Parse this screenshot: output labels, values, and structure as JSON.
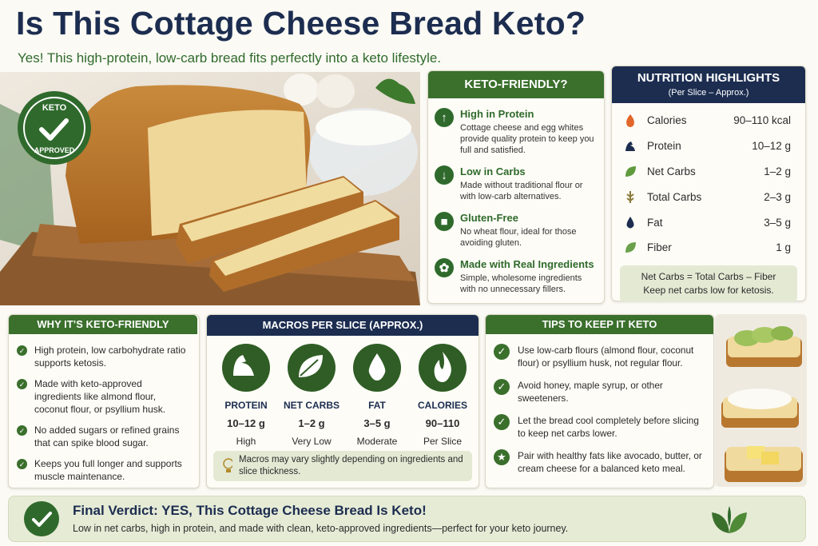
{
  "header": {
    "title": "Is This Cottage Cheese Bread Keto?",
    "subtitle": "Yes! This high-protein, low-carb bread fits perfectly into a keto lifestyle."
  },
  "badge": {
    "top": "KETO",
    "bottom": "APPROVED"
  },
  "keto_friendly": {
    "title": "KETO-FRIENDLY?",
    "items": [
      {
        "title": "High in Protein",
        "text": "Cottage cheese and egg whites provide quality protein to keep you full and satisfied."
      },
      {
        "title": "Low in Carbs",
        "text": "Made without traditional flour or with low-carb alternatives."
      },
      {
        "title": "Gluten-Free",
        "text": "No wheat flour, ideal for those avoiding gluten."
      },
      {
        "title": "Made with Real Ingredients",
        "text": "Simple, wholesome ingredients with no unnecessary fillers."
      }
    ]
  },
  "nutrition": {
    "title": "NUTRITION HIGHLIGHTS",
    "subtitle": "(Per Slice – Approx.)",
    "rows": [
      {
        "label": "Calories",
        "value": "90–110 kcal"
      },
      {
        "label": "Protein",
        "value": "10–12 g"
      },
      {
        "label": "Net Carbs",
        "value": "1–2 g"
      },
      {
        "label": "Total Carbs",
        "value": "2–3 g"
      },
      {
        "label": "Fat",
        "value": "3–5 g"
      },
      {
        "label": "Fiber",
        "value": "1 g"
      }
    ],
    "note": [
      "Net Carbs = Total Carbs – Fiber",
      "Keep net carbs low for ketosis."
    ]
  },
  "why": {
    "title": "WHY IT’S KETO-FRIENDLY",
    "items": [
      "High protein, low carbohydrate ratio supports ketosis.",
      "Made with keto-approved ingredients like almond flour, coconut flour, or psyllium husk.",
      "No added sugars or refined grains that can spike blood sugar.",
      "Keeps you full longer and supports muscle maintenance."
    ]
  },
  "macros": {
    "title": "MACROS PER SLICE (APPROX.)",
    "items": [
      {
        "label": "PROTEIN",
        "value": "10–12 g",
        "level": "High"
      },
      {
        "label": "NET CARBS",
        "value": "1–2 g",
        "level": "Very Low"
      },
      {
        "label": "FAT",
        "value": "3–5 g",
        "level": "Moderate"
      },
      {
        "label": "CALORIES",
        "value": "90–110",
        "level": "Per Slice"
      }
    ],
    "note": "Macros may vary slightly depending on ingredients and slice thickness."
  },
  "tips": {
    "title": "TIPS TO KEEP IT KETO",
    "items": [
      "Use low-carb flours (almond flour, coconut flour) or psyllium husk, not regular flour.",
      "Avoid honey, maple syrup, or other sweeteners.",
      "Let the bread cool completely before slicing to keep net carbs lower.",
      "Pair with healthy fats like avocado, butter, or cream cheese for a balanced keto meal."
    ]
  },
  "verdict": {
    "title": "Final Verdict: YES, This Cottage Cheese Bread Is Keto!",
    "text": "Low in net carbs, high in protein, and made with clean, keto-approved ingredients—perfect for your keto journey."
  }
}
